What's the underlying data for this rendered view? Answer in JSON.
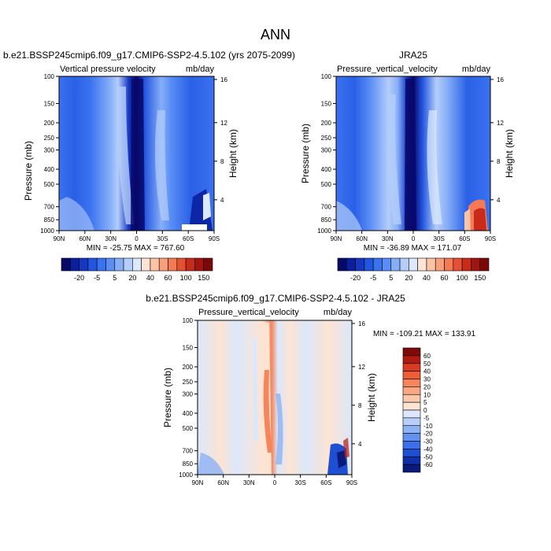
{
  "page_title": "ANN",
  "chart_data": [
    {
      "type": "heatmap",
      "title": "b.e21.BSSP245cmip6.f09_g17.CMIP6-SSP2-4.5.102 (yrs 2075-2099)",
      "left_label": "Vertical pressure velocity",
      "units": "mb/day",
      "ylabel": "Pressure (mb)",
      "ylabel_right": "Height (km)",
      "x_ticks": [
        "90N",
        "60N",
        "30N",
        "0",
        "30S",
        "60S",
        "90S"
      ],
      "y_ticks": [
        "100",
        "150",
        "200",
        "250",
        "300",
        "400",
        "500",
        "700",
        "850",
        "1000"
      ],
      "height_ticks": [
        "16",
        "12",
        "8",
        "4"
      ],
      "min_max": "MIN = -25.75  MAX = 767.60",
      "colorbar": {
        "levels": [
          "-20",
          "-5",
          "5",
          "20",
          "40",
          "60",
          "100",
          "150"
        ],
        "colors": [
          "#08086b",
          "#0a1f9e",
          "#1438c2",
          "#2255e0",
          "#3a72f0",
          "#5a8ef5",
          "#86aef8",
          "#b4cdfa",
          "#dce9fc",
          "#fde4d4",
          "#fcc3a4",
          "#f9a07b",
          "#f47a55",
          "#e64f31",
          "#c92b1b",
          "#a31410",
          "#7a0808"
        ]
      }
    },
    {
      "type": "heatmap",
      "title": "JRA25",
      "left_label": "Pressure_vertical_velocity",
      "units": "mb/day",
      "ylabel": "Pressure (mb)",
      "ylabel_right": "Height (km)",
      "x_ticks": [
        "90N",
        "60N",
        "30N",
        "0",
        "30S",
        "60S",
        "90S"
      ],
      "y_ticks": [
        "100",
        "150",
        "200",
        "250",
        "300",
        "400",
        "500",
        "700",
        "850",
        "1000"
      ],
      "height_ticks": [
        "16",
        "12",
        "8",
        "4"
      ],
      "min_max": "MIN = -36.89  MAX = 171.07",
      "colorbar": {
        "levels": [
          "-20",
          "-5",
          "5",
          "20",
          "40",
          "60",
          "100",
          "150"
        ],
        "colors": [
          "#08086b",
          "#0a1f9e",
          "#1438c2",
          "#2255e0",
          "#3a72f0",
          "#5a8ef5",
          "#86aef8",
          "#b4cdfa",
          "#dce9fc",
          "#fde4d4",
          "#fcc3a4",
          "#f9a07b",
          "#f47a55",
          "#e64f31",
          "#c92b1b",
          "#a31410",
          "#7a0808"
        ]
      }
    },
    {
      "type": "heatmap",
      "title": "b.e21.BSSP245cmip6.f09_g17.CMIP6-SSP2-4.5.102 - JRA25",
      "left_label": "Pressure_vertical_velocity",
      "units": "mb/day",
      "ylabel": "Pressure (mb)",
      "ylabel_right": "Height (km)",
      "x_ticks": [
        "90N",
        "60N",
        "30N",
        "0",
        "30S",
        "60S",
        "90S"
      ],
      "y_ticks": [
        "100",
        "150",
        "200",
        "250",
        "300",
        "400",
        "500",
        "700",
        "850",
        "1000"
      ],
      "height_ticks": [
        "16",
        "12",
        "8",
        "4"
      ],
      "min_max": "MIN = -109.21  MAX = 133.91",
      "colorbar": {
        "levels": [
          "60",
          "50",
          "40",
          "30",
          "20",
          "10",
          "5",
          "0",
          "-5",
          "-10",
          "-20",
          "-30",
          "-40",
          "-50",
          "-60"
        ],
        "colors": [
          "#7f0a0a",
          "#b01a12",
          "#d83a22",
          "#ee5e36",
          "#f6855c",
          "#fba882",
          "#fcc8aa",
          "#fde3d2",
          "#dbe8fb",
          "#b7cff9",
          "#8db2f6",
          "#6392f0",
          "#3c6fe8",
          "#1e4fd2",
          "#0f2fa8",
          "#081a7a"
        ]
      }
    }
  ]
}
